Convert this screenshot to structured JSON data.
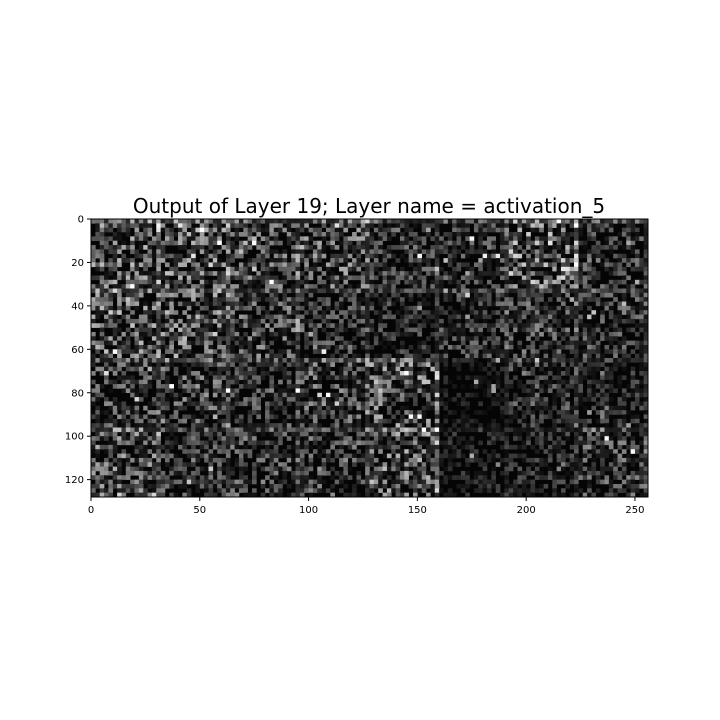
{
  "chart_data": {
    "type": "heatmap",
    "title": "Output of Layer 19; Layer name = activation_5",
    "xlabel": "",
    "ylabel": "",
    "xlim": [
      0,
      256
    ],
    "ylim": [
      128,
      0
    ],
    "x_ticks": [
      "0",
      "50",
      "100",
      "150",
      "200",
      "250"
    ],
    "y_ticks": [
      "0",
      "20",
      "40",
      "60",
      "80",
      "100",
      "120"
    ],
    "grid": false,
    "colormap": "gray",
    "image_size": [
      256,
      128
    ],
    "tile_grid": {
      "rows": 4,
      "cols": 8,
      "tile_size": 32
    },
    "tile_brightness": [
      [
        0.55,
        0.55,
        0.45,
        0.5,
        0.35,
        0.35,
        0.65,
        0.35
      ],
      [
        0.55,
        0.55,
        0.45,
        0.35,
        0.3,
        0.35,
        0.4,
        0.35
      ],
      [
        0.4,
        0.45,
        0.35,
        0.45,
        0.55,
        0.15,
        0.35,
        0.25
      ],
      [
        0.5,
        0.35,
        0.4,
        0.4,
        0.55,
        0.2,
        0.25,
        0.4
      ]
    ]
  },
  "colors": {
    "background": "#ffffff",
    "axis": "#000000",
    "text": "#000000"
  }
}
